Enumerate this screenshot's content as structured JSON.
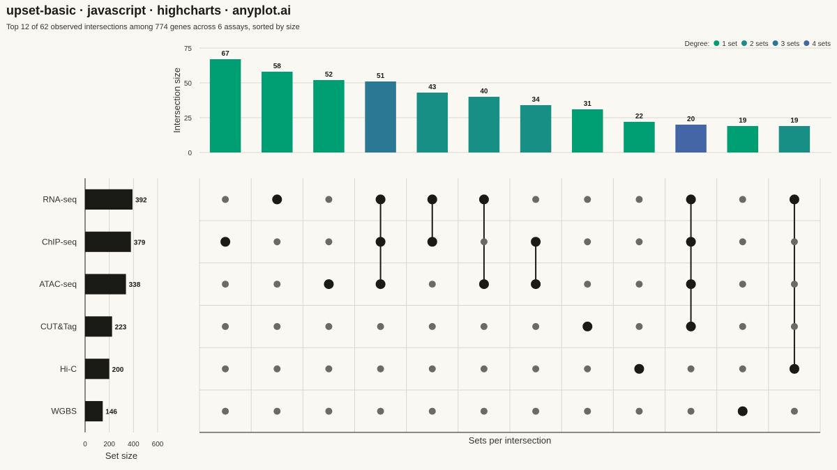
{
  "title": "upset-basic · javascript · highcharts · anyplot.ai",
  "subtitle": "Top 12 of 62 observed intersections among 774 genes across 6 assays, sorted by size",
  "legend": {
    "label": "Degree:",
    "placement": "top-right",
    "items": [
      {
        "name": "1 set",
        "color": "#009e73"
      },
      {
        "name": "2 sets",
        "color": "#178f84"
      },
      {
        "name": "3 sets",
        "color": "#2a7894"
      },
      {
        "name": "4 sets",
        "color": "#4466a6"
      }
    ]
  },
  "colors": {
    "background": "#faf8f2",
    "dot_active": "#1a1a17",
    "dot_inactive": "#6b6b66",
    "set_bar": "#1a1a17",
    "grid": "#d9d7d0"
  },
  "chart_data": {
    "type": "upset",
    "intersections": {
      "type": "bar",
      "ylabel": "Intersection size",
      "ylim": [
        0,
        75
      ],
      "yticks": [
        0,
        25,
        50,
        75
      ],
      "values": [
        67,
        58,
        52,
        51,
        43,
        40,
        34,
        31,
        22,
        20,
        19,
        19
      ],
      "degrees": [
        1,
        1,
        1,
        3,
        2,
        2,
        2,
        1,
        1,
        4,
        1,
        2
      ],
      "members": [
        [
          "ChIP-seq"
        ],
        [
          "RNA-seq"
        ],
        [
          "ATAC-seq"
        ],
        [
          "RNA-seq",
          "ChIP-seq",
          "ATAC-seq"
        ],
        [
          "RNA-seq",
          "ChIP-seq"
        ],
        [
          "RNA-seq",
          "ATAC-seq"
        ],
        [
          "ChIP-seq",
          "ATAC-seq"
        ],
        [
          "CUT&Tag"
        ],
        [
          "Hi-C"
        ],
        [
          "RNA-seq",
          "ChIP-seq",
          "ATAC-seq",
          "CUT&Tag"
        ],
        [
          "WGBS"
        ],
        [
          "RNA-seq",
          "Hi-C"
        ]
      ]
    },
    "sets": {
      "type": "bar",
      "names": [
        "RNA-seq",
        "ChIP-seq",
        "ATAC-seq",
        "CUT&Tag",
        "Hi-C",
        "WGBS"
      ],
      "sizes": [
        392,
        379,
        338,
        223,
        200,
        146
      ],
      "xlabel": "Set size",
      "xlim": [
        0,
        700
      ],
      "xticks": [
        0,
        200,
        400,
        600
      ]
    },
    "matrix_xlabel": "Sets per intersection",
    "grid": true
  }
}
